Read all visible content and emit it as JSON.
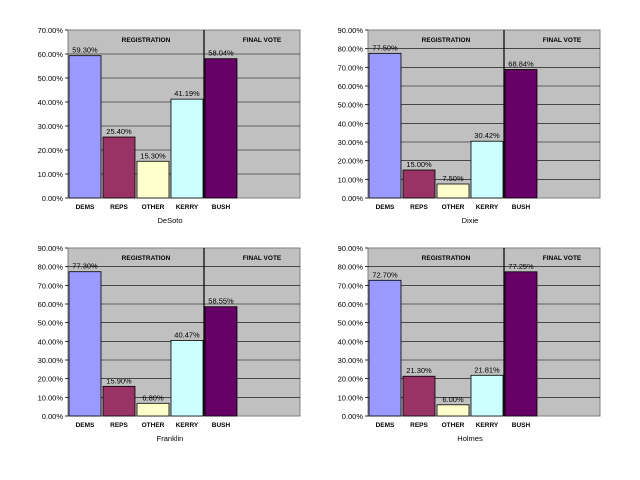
{
  "chart_data": [
    {
      "type": "bar",
      "title": "DeSoto",
      "section_labels": [
        "REGISTRATION",
        "FINAL VOTE"
      ],
      "categories": [
        "DEMS",
        "REPS",
        "OTHER",
        "KERRY",
        "BUSH"
      ],
      "values": [
        59.3,
        25.4,
        15.3,
        41.19,
        58.04
      ],
      "value_labels": [
        "59.30%",
        "25.40%",
        "15.30%",
        "41.19%",
        "58.04%"
      ],
      "ylim": [
        0,
        70
      ],
      "ytick_step": 10,
      "ytick_labels": [
        "0.00%",
        "10.00%",
        "20.00%",
        "30.00%",
        "40.00%",
        "50.00%",
        "60.00%",
        "70.00%"
      ],
      "grid": true,
      "colors": [
        "#9999ff",
        "#993366",
        "#ffffcc",
        "#ccffff",
        "#660066"
      ]
    },
    {
      "type": "bar",
      "title": "Dixie",
      "section_labels": [
        "REGISTRATION",
        "FINAL VOTE"
      ],
      "categories": [
        "DEMS",
        "REPS",
        "OTHER",
        "KERRY",
        "BUSH"
      ],
      "values": [
        77.5,
        15.0,
        7.5,
        30.42,
        68.84
      ],
      "value_labels": [
        "77.50%",
        "15.00%",
        "7.50%",
        "30.42%",
        "68.84%"
      ],
      "ylim": [
        0,
        90
      ],
      "ytick_step": 10,
      "ytick_labels": [
        "0.00%",
        "10.00%",
        "20.00%",
        "30.00%",
        "40.00%",
        "50.00%",
        "60.00%",
        "70.00%",
        "80.00%",
        "90.00%"
      ],
      "grid": true,
      "colors": [
        "#9999ff",
        "#993366",
        "#ffffcc",
        "#ccffff",
        "#660066"
      ]
    },
    {
      "type": "bar",
      "title": "Franklin",
      "section_labels": [
        "REGISTRATION",
        "FINAL VOTE"
      ],
      "categories": [
        "DEMS",
        "REPS",
        "OTHER",
        "KERRY",
        "BUSH"
      ],
      "values": [
        77.3,
        15.9,
        6.8,
        40.47,
        58.55
      ],
      "value_labels": [
        "77.30%",
        "15.90%",
        "6.80%",
        "40.47%",
        "58.55%"
      ],
      "ylim": [
        0,
        90
      ],
      "ytick_step": 10,
      "ytick_labels": [
        "0.00%",
        "10.00%",
        "20.00%",
        "30.00%",
        "40.00%",
        "50.00%",
        "60.00%",
        "70.00%",
        "80.00%",
        "90.00%"
      ],
      "grid": true,
      "colors": [
        "#9999ff",
        "#993366",
        "#ffffcc",
        "#ccffff",
        "#660066"
      ]
    },
    {
      "type": "bar",
      "title": "Holmes",
      "section_labels": [
        "REGISTRATION",
        "FINAL VOTE"
      ],
      "categories": [
        "DEMS",
        "REPS",
        "OTHER",
        "KERRY",
        "BUSH"
      ],
      "values": [
        72.7,
        21.3,
        6.0,
        21.81,
        77.25
      ],
      "value_labels": [
        "72.70%",
        "21.30%",
        "6.00%",
        "21.81%",
        "77.25%"
      ],
      "ylim": [
        0,
        90
      ],
      "ytick_step": 10,
      "ytick_labels": [
        "0.00%",
        "10.00%",
        "20.00%",
        "30.00%",
        "40.00%",
        "50.00%",
        "60.00%",
        "70.00%",
        "80.00%",
        "90.00%"
      ],
      "grid": true,
      "colors": [
        "#9999ff",
        "#993366",
        "#ffffcc",
        "#ccffff",
        "#660066"
      ]
    }
  ]
}
